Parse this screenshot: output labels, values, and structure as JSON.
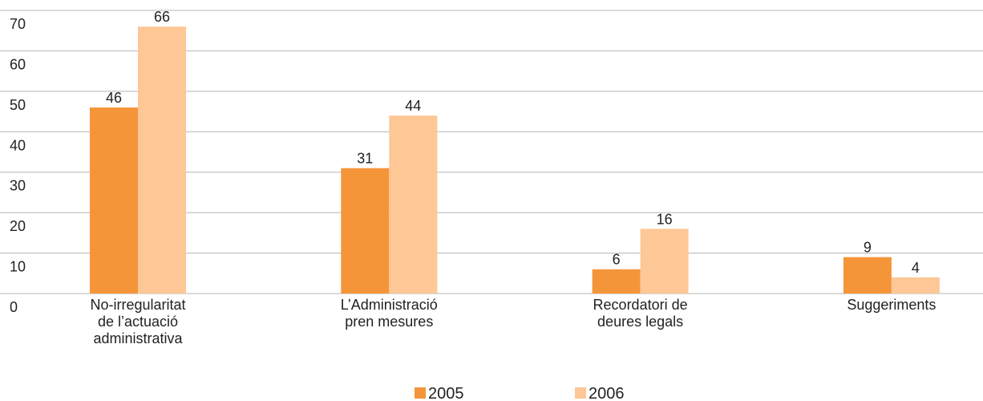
{
  "chart_data": {
    "type": "bar",
    "categories": [
      "No-irregularitat\nde l’actuació\nadministrativa",
      "L’Administració\npren mesures",
      "Recordatori de\ndeures legals",
      "Suggeriments"
    ],
    "series": [
      {
        "name": "2005",
        "color": "#f5953a",
        "values": [
          46,
          31,
          6,
          9
        ]
      },
      {
        "name": "2006",
        "color": "#fdc796",
        "values": [
          66,
          44,
          16,
          4
        ]
      }
    ],
    "ylim": [
      0,
      70
    ],
    "yticks": [
      0,
      10,
      20,
      30,
      40,
      50,
      60,
      70
    ],
    "grid": true,
    "legend": "bottom"
  }
}
